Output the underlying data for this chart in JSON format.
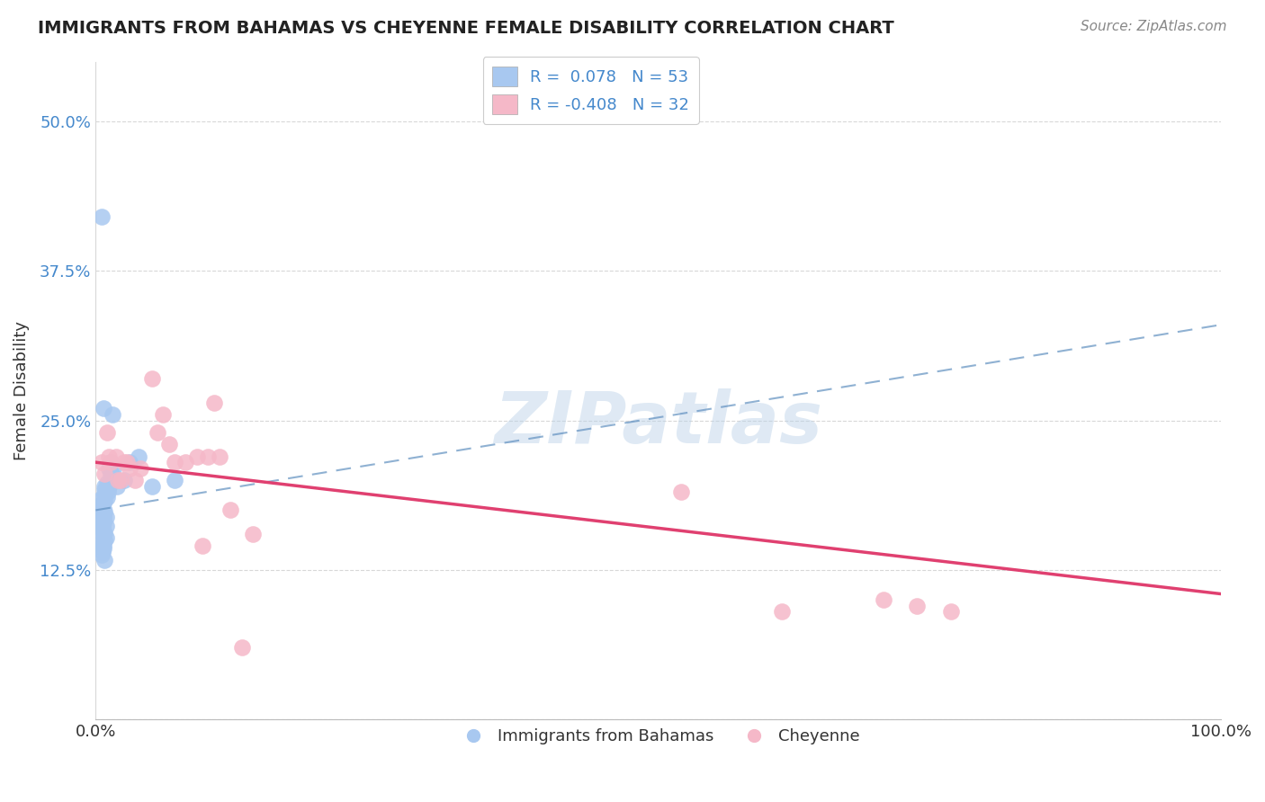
{
  "title": "IMMIGRANTS FROM BAHAMAS VS CHEYENNE FEMALE DISABILITY CORRELATION CHART",
  "source_text": "Source: ZipAtlas.com",
  "ylabel": "Female Disability",
  "xlim": [
    0.0,
    1.0
  ],
  "ylim": [
    0.0,
    0.55
  ],
  "yticks": [
    0.0,
    0.125,
    0.25,
    0.375,
    0.5
  ],
  "xticks": [
    0.0,
    1.0
  ],
  "xtick_labels": [
    "0.0%",
    "100.0%"
  ],
  "legend_r1": "R =  0.078   N = 53",
  "legend_r2": "R = -0.408   N = 32",
  "blue_color": "#a8c8f0",
  "pink_color": "#f5b8c8",
  "line_blue_color": "#6090c0",
  "line_pink_color": "#e04070",
  "watermark": "ZIPatlas",
  "grid_color": "#d8d8d8",
  "title_color": "#222222",
  "source_color": "#888888",
  "tick_color": "#4488cc",
  "blue_scatter_x": [
    0.008,
    0.005,
    0.005,
    0.007,
    0.005,
    0.006,
    0.008,
    0.007,
    0.006,
    0.005,
    0.008,
    0.007,
    0.009,
    0.006,
    0.005,
    0.008,
    0.007,
    0.006,
    0.005,
    0.008,
    0.007,
    0.009,
    0.006,
    0.005,
    0.008,
    0.007,
    0.006,
    0.008,
    0.009,
    0.006,
    0.007,
    0.005,
    0.008,
    0.014,
    0.012,
    0.013,
    0.01,
    0.011,
    0.01,
    0.012,
    0.014,
    0.013,
    0.015,
    0.018,
    0.016,
    0.019,
    0.025,
    0.03,
    0.038,
    0.05,
    0.07,
    0.005,
    0.007
  ],
  "blue_scatter_y": [
    0.195,
    0.185,
    0.175,
    0.165,
    0.16,
    0.155,
    0.15,
    0.145,
    0.14,
    0.18,
    0.188,
    0.17,
    0.162,
    0.158,
    0.148,
    0.192,
    0.182,
    0.172,
    0.168,
    0.183,
    0.176,
    0.169,
    0.163,
    0.178,
    0.174,
    0.166,
    0.161,
    0.156,
    0.152,
    0.147,
    0.143,
    0.138,
    0.133,
    0.2,
    0.195,
    0.205,
    0.198,
    0.19,
    0.186,
    0.21,
    0.205,
    0.215,
    0.255,
    0.2,
    0.21,
    0.195,
    0.2,
    0.215,
    0.22,
    0.195,
    0.2,
    0.42,
    0.26
  ],
  "pink_scatter_x": [
    0.005,
    0.008,
    0.01,
    0.012,
    0.013,
    0.018,
    0.02,
    0.022,
    0.025,
    0.028,
    0.03,
    0.035,
    0.04,
    0.05,
    0.055,
    0.06,
    0.065,
    0.07,
    0.08,
    0.09,
    0.095,
    0.1,
    0.105,
    0.11,
    0.12,
    0.13,
    0.14,
    0.52,
    0.61,
    0.7,
    0.73,
    0.76
  ],
  "pink_scatter_y": [
    0.215,
    0.205,
    0.24,
    0.22,
    0.215,
    0.22,
    0.2,
    0.2,
    0.215,
    0.215,
    0.21,
    0.2,
    0.21,
    0.285,
    0.24,
    0.255,
    0.23,
    0.215,
    0.215,
    0.22,
    0.145,
    0.22,
    0.265,
    0.22,
    0.175,
    0.06,
    0.155,
    0.19,
    0.09,
    0.1,
    0.095,
    0.09
  ],
  "blue_line_x0": 0.0,
  "blue_line_y0": 0.175,
  "blue_line_x1": 1.0,
  "blue_line_y1": 0.33,
  "pink_line_x0": 0.0,
  "pink_line_y0": 0.215,
  "pink_line_x1": 1.0,
  "pink_line_y1": 0.105
}
